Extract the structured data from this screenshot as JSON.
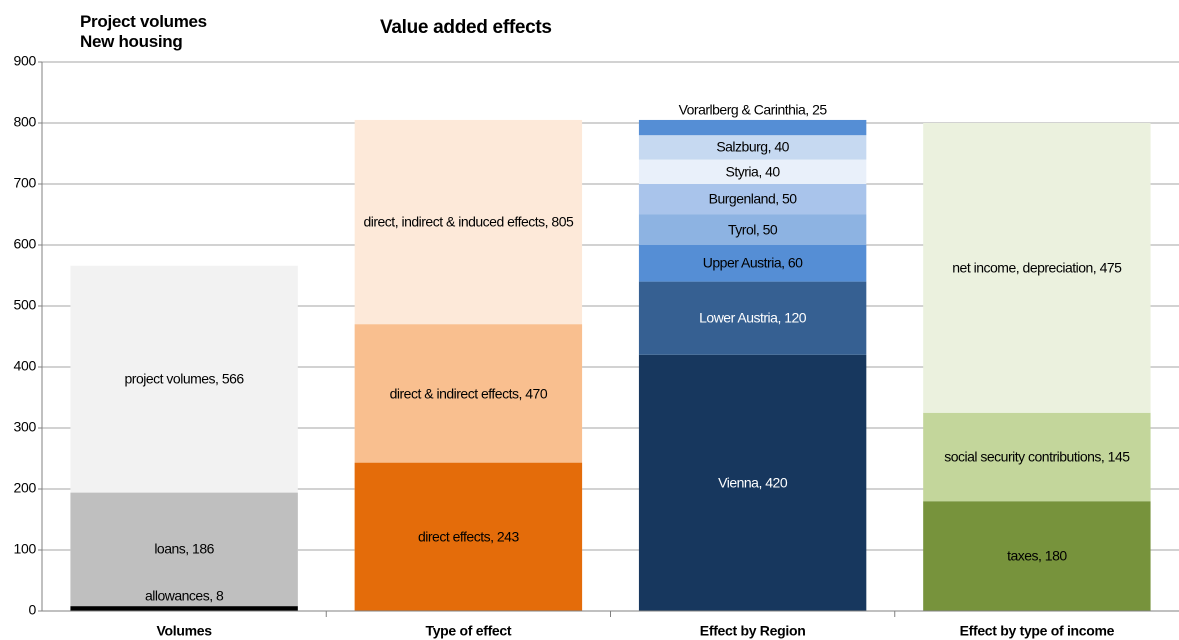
{
  "chart_data": {
    "type": "bar",
    "header_lines": [
      "Project volumes",
      "New housing"
    ],
    "title": "Value added effects",
    "ylim": [
      0,
      900
    ],
    "yticks": [
      0,
      100,
      200,
      300,
      400,
      500,
      600,
      700,
      800,
      900
    ],
    "grid": true,
    "columns": [
      {
        "category": "Volumes",
        "layers": [
          [
            {
              "label": "project volumes, 566",
              "value": 566,
              "color": "#f2f2f2"
            }
          ],
          [
            {
              "label": "allowances, 8",
              "value": 8,
              "color": "#000000"
            },
            {
              "label": "loans, 186",
              "value": 186,
              "color": "#bfbfbf"
            }
          ]
        ]
      },
      {
        "category": "Type of effect",
        "layers": [
          [
            {
              "label": "direct, indirect & induced effects, 805",
              "value": 805,
              "color": "#fde9d9"
            }
          ],
          [
            {
              "label": "direct & indirect effects, 470",
              "value": 470,
              "color": "#f9bf8f"
            }
          ],
          [
            {
              "label": "direct effects, 243",
              "value": 243,
              "color": "#e46c0a"
            }
          ]
        ]
      },
      {
        "category": "Effect by Region",
        "layers": [
          [
            {
              "label": "Vienna, 420",
              "value": 420,
              "color": "#17375e"
            },
            {
              "label": "Lower Austria, 120",
              "value": 120,
              "color": "#366092"
            },
            {
              "label": "Upper Austria, 60",
              "value": 60,
              "color": "#558ed5"
            },
            {
              "label": "Tyrol, 50",
              "value": 50,
              "color": "#8db3e2"
            },
            {
              "label": "Burgenland, 50",
              "value": 50,
              "color": "#a9c4eb"
            },
            {
              "label": "Styria, 40",
              "value": 40,
              "color": "#e9f0fa"
            },
            {
              "label": "Salzburg, 40",
              "value": 40,
              "color": "#c6d9f1"
            },
            {
              "label": "Vorarlberg & Carinthia, 25",
              "value": 25,
              "color": "#558ed5"
            }
          ]
        ]
      },
      {
        "category": "Effect by type of income",
        "layers": [
          [
            {
              "label": "taxes, 180",
              "value": 180,
              "color": "#77933c"
            },
            {
              "label": "social security contributions, 145",
              "value": 145,
              "color": "#c3d69b"
            },
            {
              "label": "net income, depreciation, 475",
              "value": 475,
              "color": "#ebf1de"
            }
          ]
        ]
      }
    ]
  }
}
